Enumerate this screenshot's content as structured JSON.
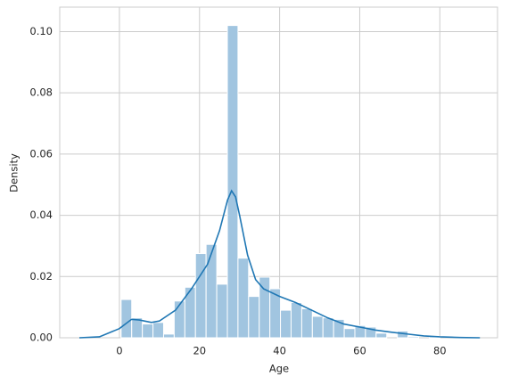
{
  "chart_data": [
    {
      "type": "histogram",
      "xlabel": "Age",
      "ylabel": "Density",
      "color": "#a1c5e0",
      "grid": true,
      "xlim": [
        -14.9,
        94.4
      ],
      "ylim": [
        0,
        0.108
      ],
      "xticks": [
        0,
        20,
        40,
        60,
        80
      ],
      "yticks": [
        {
          "value": 0,
          "label": "0.00"
        },
        {
          "value": 0.02,
          "label": "0.02"
        },
        {
          "value": 0.04,
          "label": "0.04"
        },
        {
          "value": 0.06,
          "label": "0.06"
        },
        {
          "value": 0.08,
          "label": "0.08"
        },
        {
          "value": 0.1,
          "label": "0.10"
        }
      ],
      "bins": [
        0.42,
        3.07,
        5.73,
        8.38,
        11.03,
        13.68,
        16.34,
        18.99,
        21.64,
        24.3,
        26.95,
        29.6,
        32.25,
        34.91,
        37.56,
        40.21,
        42.86,
        45.52,
        48.17,
        50.82,
        53.48,
        56.13,
        58.78,
        61.43,
        64.09,
        66.74,
        69.39,
        72.05,
        74.7,
        77.35,
        80.0
      ],
      "values": [
        0.0125,
        0.0065,
        0.0045,
        0.005,
        0.0012,
        0.012,
        0.0165,
        0.0275,
        0.0305,
        0.0175,
        0.102,
        0.026,
        0.0135,
        0.0198,
        0.016,
        0.009,
        0.0115,
        0.0095,
        0.007,
        0.0065,
        0.006,
        0.003,
        0.004,
        0.0035,
        0.0015,
        0,
        0.0022,
        0.0004,
        0,
        0.0005
      ]
    },
    {
      "type": "line",
      "color": "#1f77b4",
      "x": [
        -10,
        -5,
        0,
        3,
        5,
        8,
        10,
        14,
        18,
        22,
        25,
        27,
        28,
        29,
        30,
        32,
        34,
        36,
        40,
        44,
        48,
        52,
        56,
        60,
        64,
        68,
        72,
        76,
        80,
        85,
        90
      ],
      "values": [
        0,
        0.0003,
        0.003,
        0.006,
        0.0058,
        0.005,
        0.0055,
        0.009,
        0.016,
        0.024,
        0.035,
        0.045,
        0.048,
        0.046,
        0.04,
        0.027,
        0.019,
        0.016,
        0.0135,
        0.0115,
        0.009,
        0.0065,
        0.0045,
        0.0035,
        0.0025,
        0.0018,
        0.0012,
        0.0006,
        0.0003,
        0.0001,
        0
      ]
    }
  ]
}
